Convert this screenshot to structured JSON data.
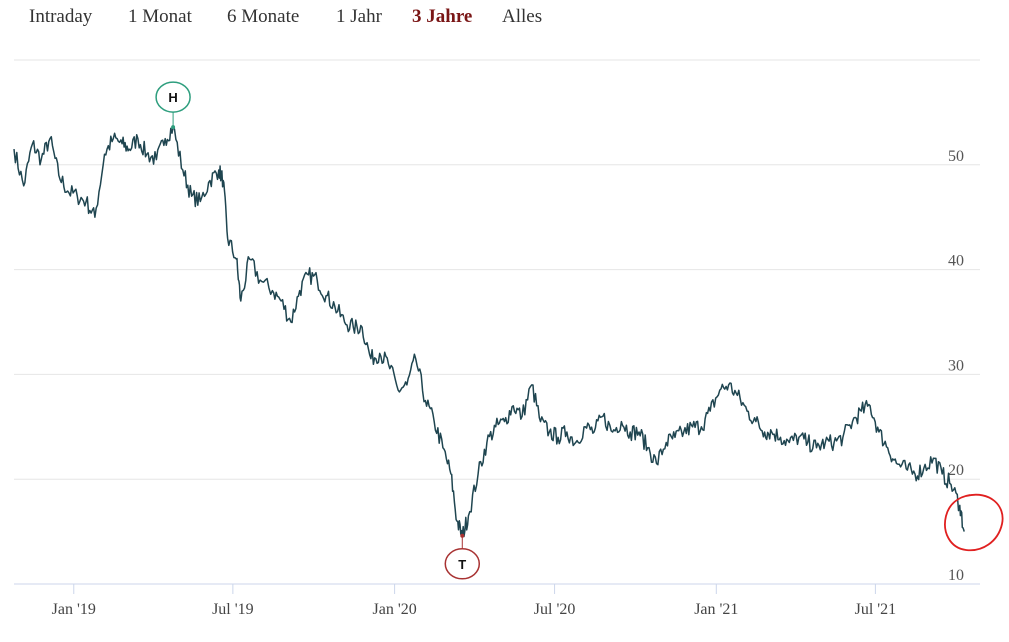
{
  "range_tabs": [
    {
      "label": "Intraday",
      "active": false
    },
    {
      "label": "1 Monat",
      "active": false
    },
    {
      "label": "6 Monate",
      "active": false
    },
    {
      "label": "1 Jahr",
      "active": false
    },
    {
      "label": "3 Jahre",
      "active": true
    },
    {
      "label": "Alles",
      "active": false
    }
  ],
  "colors": {
    "line": "#1f4550",
    "high": "#2e9e7e",
    "low": "#a83232",
    "annotation": "#e02020",
    "active_tab": "#7a1616"
  },
  "chart_data": {
    "type": "line",
    "title": "",
    "xlabel": "",
    "ylabel": "",
    "x_ticks": [
      "Jan '19",
      "Jul '19",
      "Jan '20",
      "Jul '20",
      "Jan '21",
      "Jul '21"
    ],
    "y_ticks": [
      10,
      20,
      30,
      40,
      50
    ],
    "ylim": [
      10,
      60
    ],
    "xlim": [
      "2018-10-25",
      "2021-10-28"
    ],
    "y_axis_side": "right",
    "grid": true,
    "markers": [
      {
        "label": "H",
        "date": "2019-04-24",
        "value": 53.6
      },
      {
        "label": "T",
        "date": "2020-03-18",
        "value": 14.6
      }
    ],
    "series": [
      {
        "x": [
          "2018-10-25",
          "2018-11-05",
          "2018-11-15",
          "2018-11-25",
          "2018-12-05",
          "2018-12-15",
          "2018-12-25",
          "2019-01-05",
          "2019-01-15",
          "2019-01-25",
          "2019-02-05",
          "2019-02-15",
          "2019-02-25",
          "2019-03-05",
          "2019-03-15",
          "2019-03-25",
          "2019-04-05",
          "2019-04-15",
          "2019-04-24",
          "2019-05-05",
          "2019-05-15",
          "2019-05-25",
          "2019-06-05",
          "2019-06-15",
          "2019-06-20",
          "2019-06-25",
          "2019-07-05",
          "2019-07-10",
          "2019-07-20",
          "2019-08-01",
          "2019-08-15",
          "2019-08-25",
          "2019-09-05",
          "2019-09-15",
          "2019-09-25",
          "2019-10-05",
          "2019-10-15",
          "2019-10-25",
          "2019-11-05",
          "2019-11-15",
          "2019-11-25",
          "2019-12-05",
          "2019-12-15",
          "2019-12-25",
          "2020-01-05",
          "2020-01-15",
          "2020-01-25",
          "2020-02-05",
          "2020-02-15",
          "2020-02-25",
          "2020-03-05",
          "2020-03-12",
          "2020-03-18",
          "2020-03-25",
          "2020-04-05",
          "2020-04-15",
          "2020-04-25",
          "2020-05-05",
          "2020-05-15",
          "2020-05-25",
          "2020-06-05",
          "2020-06-15",
          "2020-06-25",
          "2020-07-05",
          "2020-07-15",
          "2020-07-25",
          "2020-08-05",
          "2020-08-15",
          "2020-08-25",
          "2020-09-05",
          "2020-09-15",
          "2020-09-25",
          "2020-10-05",
          "2020-10-15",
          "2020-10-25",
          "2020-11-05",
          "2020-11-15",
          "2020-11-25",
          "2020-12-05",
          "2020-12-15",
          "2020-12-25",
          "2021-01-05",
          "2021-01-15",
          "2021-01-25",
          "2021-02-05",
          "2021-02-15",
          "2021-02-25",
          "2021-03-05",
          "2021-03-15",
          "2021-03-25",
          "2021-04-05",
          "2021-04-15",
          "2021-04-25",
          "2021-05-05",
          "2021-05-15",
          "2021-05-25",
          "2021-06-05",
          "2021-06-15",
          "2021-06-25",
          "2021-07-05",
          "2021-07-15",
          "2021-07-25",
          "2021-08-05",
          "2021-08-15",
          "2021-08-25",
          "2021-09-05",
          "2021-09-15",
          "2021-09-25",
          "2021-10-05",
          "2021-10-10"
        ],
        "values": [
          51.5,
          48.0,
          52.0,
          50.5,
          52.5,
          49.0,
          47.5,
          47.0,
          46.5,
          45.0,
          51.0,
          52.5,
          52.0,
          51.5,
          52.5,
          51.0,
          50.5,
          52.5,
          53.6,
          49.5,
          47.0,
          46.5,
          48.5,
          49.5,
          48.5,
          43.0,
          41.0,
          37.0,
          41.0,
          39.0,
          38.0,
          37.0,
          35.0,
          38.0,
          39.5,
          39.0,
          37.5,
          36.5,
          35.0,
          34.5,
          34.5,
          31.5,
          32.0,
          31.0,
          28.5,
          29.0,
          31.5,
          27.5,
          25.5,
          23.0,
          20.5,
          16.0,
          14.6,
          16.5,
          20.5,
          23.5,
          25.0,
          25.5,
          27.0,
          26.0,
          29.0,
          25.5,
          24.5,
          24.0,
          24.5,
          23.5,
          25.0,
          24.5,
          26.0,
          24.5,
          25.5,
          24.5,
          24.5,
          23.0,
          21.5,
          23.5,
          24.0,
          24.5,
          25.0,
          25.0,
          26.5,
          28.5,
          29.0,
          28.0,
          26.5,
          25.5,
          24.5,
          24.5,
          24.0,
          23.5,
          24.0,
          23.5,
          23.0,
          23.5,
          23.5,
          24.0,
          25.5,
          26.5,
          27.0,
          24.5,
          23.0,
          21.5,
          21.0,
          20.5,
          21.0,
          22.0,
          20.5,
          19.5,
          17.5,
          15.0
        ]
      }
    ]
  }
}
